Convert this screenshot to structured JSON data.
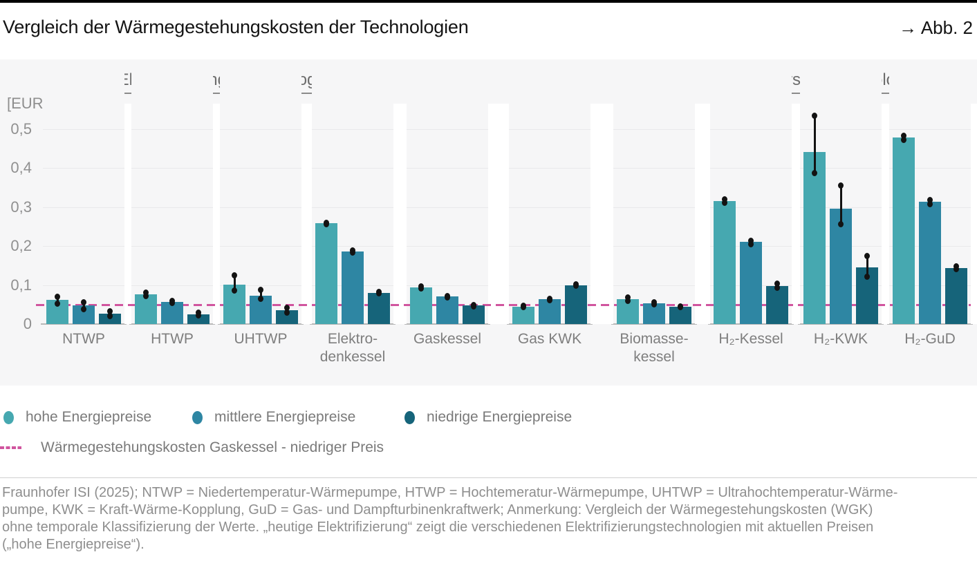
{
  "header": {
    "title": "Vergleich der Wärmegestehungskosten der Technologien",
    "figure_ref": "→ Abb. 2"
  },
  "sections": [
    {
      "label": "Elektrifizierungs-Technologien"
    },
    {
      "label": "Wasserstoff-Technologien"
    }
  ],
  "chart_data": {
    "type": "bar",
    "unit_label": "[EUR/kWh]",
    "ylabel": "EUR/kWh",
    "ylim": [
      0,
      0.52
    ],
    "y_ticks": [
      "0",
      "0,1",
      "0,2",
      "0,3",
      "0,4",
      "0,5"
    ],
    "y_tick_values": [
      0,
      0.1,
      0.2,
      0.3,
      0.4,
      0.5
    ],
    "grid": "horizontal",
    "legend_position": "bottom",
    "categories": [
      "NTWP",
      "HTWP",
      "UHTWP",
      "Elektro-\ndenkessel",
      "Gaskessel",
      "Gas KWK",
      "Biomasse-\nkessel",
      "H₂-Kessel",
      "H₂-KWK",
      "H₂-GuD"
    ],
    "category_sections": [
      0,
      0,
      0,
      0,
      0,
      0,
      0,
      1,
      1,
      1
    ],
    "series": [
      {
        "name": "hohe Energiepreise",
        "color": "#46A8B0",
        "values": [
          0.062,
          0.076,
          0.101,
          0.258,
          0.094,
          0.045,
          0.064,
          0.315,
          0.44,
          0.478
        ],
        "err_low": [
          0.052,
          0.071,
          0.085,
          0.255,
          0.091,
          0.043,
          0.059,
          0.309,
          0.385,
          0.47
        ],
        "err_high": [
          0.071,
          0.081,
          0.126,
          0.261,
          0.097,
          0.047,
          0.069,
          0.321,
          0.535,
          0.483
        ]
      },
      {
        "name": "mittlere Energiepreise",
        "color": "#2E86A3",
        "values": [
          0.048,
          0.057,
          0.073,
          0.186,
          0.07,
          0.063,
          0.053,
          0.21,
          0.295,
          0.313
        ],
        "err_low": [
          0.038,
          0.053,
          0.064,
          0.183,
          0.067,
          0.06,
          0.049,
          0.204,
          0.255,
          0.307
        ],
        "err_high": [
          0.056,
          0.061,
          0.089,
          0.189,
          0.073,
          0.066,
          0.057,
          0.215,
          0.355,
          0.318
        ]
      },
      {
        "name": "niedrige Energiepreise",
        "color": "#16647A",
        "values": [
          0.027,
          0.025,
          0.035,
          0.08,
          0.047,
          0.1,
          0.045,
          0.098,
          0.145,
          0.144
        ],
        "err_low": [
          0.02,
          0.021,
          0.028,
          0.077,
          0.045,
          0.097,
          0.043,
          0.092,
          0.12,
          0.139
        ],
        "err_high": [
          0.034,
          0.03,
          0.043,
          0.083,
          0.049,
          0.103,
          0.046,
          0.104,
          0.175,
          0.149
        ]
      }
    ],
    "reference_line": {
      "label": "Wärmegestehungskosten Gaskessel - niedriger Preis",
      "value": 0.047,
      "color": "#D0549E",
      "style": "dashed"
    }
  },
  "footer": {
    "lines": [
      "Fraunhofer ISI (2025); NTWP = Niedertemperatur-Wärmepumpe, HTWP = Hochtemeratur-Wärmepumpe, UHTWP = Ultrahochtemperatur-Wärme-",
      "pumpe, KWK = Kraft-Wärme-Kopplung, GuD = Gas- und Dampfturbinenkraftwerk; Anmerkung: Vergleich der Wärmegestehungskosten (WGK)",
      "ohne temporale Klassifizierung der Werte. „heutige Elektrifizierung“ zeigt die verschiedenen Elektrifizierungstechnologien mit aktuellen Preisen",
      "(„hohe Energiepreise“)."
    ]
  }
}
